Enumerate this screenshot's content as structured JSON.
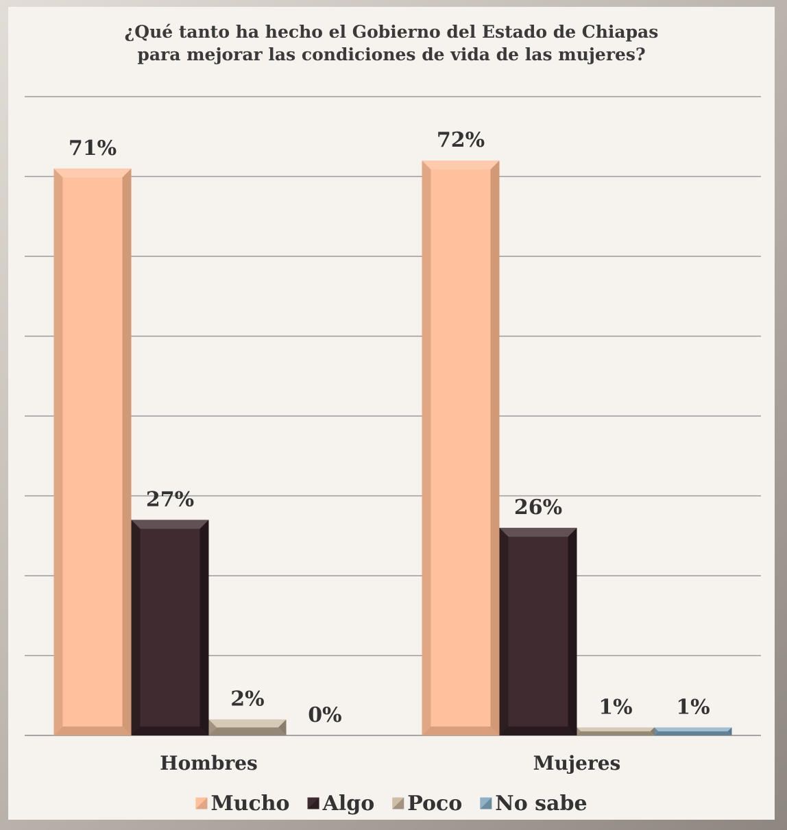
{
  "chart_data": {
    "type": "bar",
    "title": "¿Qué tanto ha hecho el Gobierno del Estado de Chiapas",
    "subtitle": "para mejorar las condiciones de vida de las mujeres?",
    "categories": [
      "Hombres",
      "Mujeres"
    ],
    "series": [
      {
        "name": "Mucho",
        "values": [
          71,
          72
        ],
        "labels": [
          "71%",
          "72%"
        ],
        "color": "#ffc09e",
        "edge": "#c9926f"
      },
      {
        "name": "Algo",
        "values": [
          27,
          26
        ],
        "labels": [
          "27%",
          "26%"
        ],
        "color": "#3f2b30",
        "edge": "#1f1417"
      },
      {
        "name": "Poco",
        "values": [
          2,
          1
        ],
        "labels": [
          "2%",
          "1%"
        ],
        "color": "#cdbfa6",
        "edge": "#7e7060"
      },
      {
        "name": "No sabe",
        "values": [
          0,
          1
        ],
        "labels": [
          "0%",
          "1%"
        ],
        "color": "#8fb0c6",
        "edge": "#4f6d80"
      }
    ],
    "ylim": [
      0,
      80
    ],
    "grid": true,
    "legend_position": "bottom",
    "xlabel": "",
    "ylabel": ""
  }
}
